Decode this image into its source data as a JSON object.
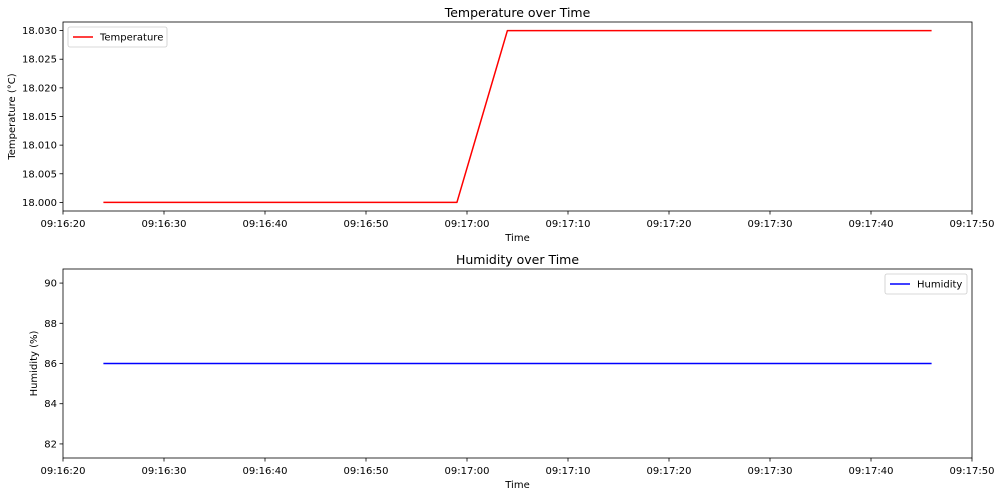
{
  "chart_data": [
    {
      "type": "line",
      "title": "Temperature over Time",
      "xlabel": "Time",
      "ylabel": "Temperature (°C)",
      "x_ticks": [
        "09:16:20",
        "09:16:30",
        "09:16:40",
        "09:16:50",
        "09:17:00",
        "09:17:10",
        "09:17:20",
        "09:17:30",
        "09:17:40",
        "09:17:50"
      ],
      "y_ticks": [
        "18.000",
        "18.005",
        "18.010",
        "18.015",
        "18.020",
        "18.025",
        "18.030"
      ],
      "xlim": [
        "09:16:20",
        "09:17:50"
      ],
      "ylim": [
        17.9985,
        18.0315
      ],
      "legend": "upper-left",
      "grid": false,
      "series": [
        {
          "name": "Temperature",
          "color": "#ff0000",
          "x": [
            "09:16:24",
            "09:16:59",
            "09:17:04",
            "09:17:46"
          ],
          "y": [
            18.0,
            18.0,
            18.03,
            18.03
          ]
        }
      ]
    },
    {
      "type": "line",
      "title": "Humidity over Time",
      "xlabel": "Time",
      "ylabel": "Humidity (%)",
      "x_ticks": [
        "09:16:20",
        "09:16:30",
        "09:16:40",
        "09:16:50",
        "09:17:00",
        "09:17:10",
        "09:17:20",
        "09:17:30",
        "09:17:40",
        "09:17:50"
      ],
      "y_ticks": [
        "82",
        "84",
        "86",
        "88",
        "90"
      ],
      "xlim": [
        "09:16:20",
        "09:17:50"
      ],
      "ylim": [
        81.3,
        90.7
      ],
      "legend": "upper-right",
      "grid": false,
      "series": [
        {
          "name": "Humidity",
          "color": "#0000ff",
          "x": [
            "09:16:24",
            "09:17:46"
          ],
          "y": [
            86,
            86
          ]
        }
      ]
    }
  ]
}
